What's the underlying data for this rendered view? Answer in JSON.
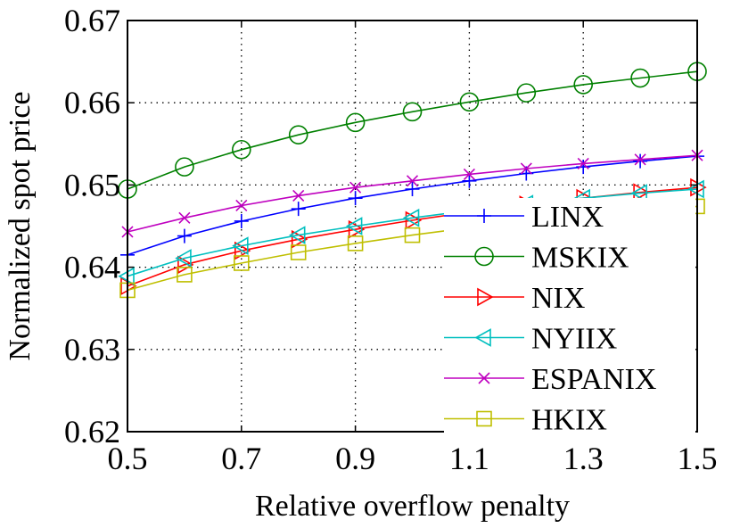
{
  "chart_data": {
    "type": "line",
    "title": "",
    "xlabel": "Relative overflow penalty",
    "ylabel": "Normalized spot price",
    "xlim": [
      0.5,
      1.5
    ],
    "ylim": [
      0.62,
      0.67
    ],
    "x_ticks": [
      0.5,
      0.7,
      0.9,
      1.1,
      1.3,
      1.5
    ],
    "x_tick_labels": [
      "0.5",
      "0.7",
      "0.9",
      "1.1",
      "1.3",
      "1.5"
    ],
    "y_ticks": [
      0.62,
      0.63,
      0.64,
      0.65,
      0.66,
      0.67
    ],
    "y_tick_labels": [
      "0.62",
      "0.63",
      "0.64",
      "0.65",
      "0.66",
      "0.67"
    ],
    "grid": true,
    "legend_position": "bottom-right",
    "x": [
      0.5,
      0.6,
      0.7,
      0.8,
      0.9,
      1.0,
      1.1,
      1.2,
      1.3,
      1.4,
      1.5
    ],
    "series": [
      {
        "name": "LINX",
        "color": "#0000ff",
        "marker": "plus",
        "values": [
          0.6415,
          0.6438,
          0.6456,
          0.6471,
          0.6484,
          0.6495,
          0.6505,
          0.6514,
          0.6522,
          0.6529,
          0.6535
        ]
      },
      {
        "name": "MSKIX",
        "color": "#008000",
        "marker": "circle",
        "values": [
          0.6495,
          0.6522,
          0.6543,
          0.6561,
          0.6576,
          0.6589,
          0.6601,
          0.6612,
          0.6622,
          0.663,
          0.6638
        ]
      },
      {
        "name": "NIX",
        "color": "#ff0000",
        "marker": "triangle-right",
        "values": [
          0.6377,
          0.6403,
          0.642,
          0.6434,
          0.6446,
          0.6457,
          0.6467,
          0.6476,
          0.6484,
          0.6491,
          0.6497
        ]
      },
      {
        "name": "NYIIX",
        "color": "#00bfbf",
        "marker": "triangle-left",
        "values": [
          0.6389,
          0.6411,
          0.6426,
          0.6439,
          0.645,
          0.646,
          0.6469,
          0.6477,
          0.6484,
          0.649,
          0.6495
        ]
      },
      {
        "name": "ESPANIX",
        "color": "#bf00bf",
        "marker": "x",
        "values": [
          0.6443,
          0.646,
          0.6475,
          0.6487,
          0.6497,
          0.6505,
          0.6513,
          0.652,
          0.6526,
          0.6531,
          0.6536
        ]
      },
      {
        "name": "HKIX",
        "color": "#bfbf00",
        "marker": "square",
        "values": [
          0.6372,
          0.6391,
          0.6405,
          0.6418,
          0.6429,
          0.6439,
          0.6448,
          0.6456,
          0.6463,
          0.6469,
          0.6474
        ]
      }
    ]
  }
}
